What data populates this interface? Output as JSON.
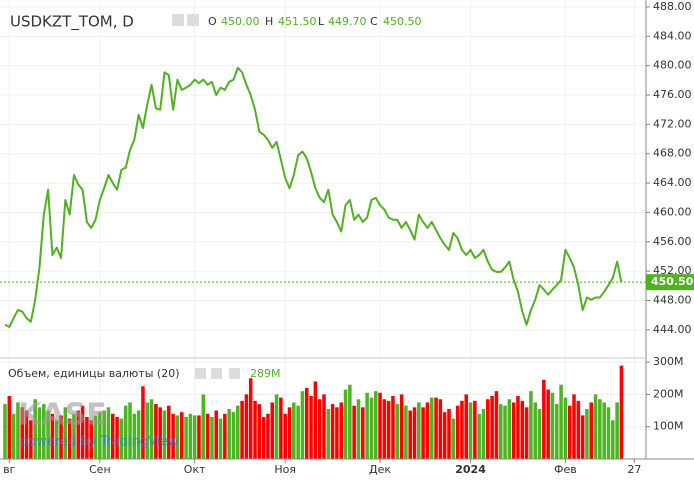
{
  "header": {
    "symbol": "USDKZT_TOM, D",
    "o_label": "O",
    "open": "450.00",
    "h_label": "H",
    "high": "451.50",
    "l_label": "L",
    "low": "449.70",
    "c_label": "C",
    "close": "450.50"
  },
  "watermark": {
    "logo": "KASE",
    "powered": "powered by TradingView"
  },
  "chart_data": [
    {
      "type": "line",
      "color": "#4fb31e",
      "grid": true,
      "last_value_line": true,
      "values": [
        444.7,
        444.4,
        445.6,
        446.7,
        446.5,
        445.6,
        445.1,
        448.1,
        452.5,
        459.7,
        463.1,
        454.2,
        455.2,
        453.8,
        461.7,
        459.7,
        465.1,
        463.8,
        463.1,
        458.7,
        457.9,
        459.0,
        461.7,
        463.3,
        465.1,
        464.0,
        463.1,
        465.8,
        466.1,
        468.5,
        469.9,
        473.3,
        471.5,
        474.7,
        477.4,
        474.2,
        474.0,
        479.1,
        478.7,
        474.0,
        478.1,
        476.7,
        477.0,
        477.4,
        478.1,
        477.6,
        478.1,
        477.4,
        477.8,
        476.0,
        477.0,
        476.7,
        477.8,
        478.1,
        479.7,
        479.1,
        477.4,
        476.0,
        474.0,
        471.0,
        470.6,
        469.9,
        468.8,
        469.6,
        467.2,
        464.7,
        463.3,
        465.1,
        467.8,
        468.3,
        467.4,
        465.5,
        463.3,
        462.0,
        461.4,
        463.1,
        459.7,
        458.7,
        457.4,
        461.0,
        461.7,
        459.0,
        459.7,
        458.7,
        459.3,
        461.7,
        462.0,
        461.0,
        460.4,
        459.3,
        459.0,
        459.0,
        457.9,
        458.7,
        457.6,
        456.3,
        459.7,
        458.7,
        457.9,
        458.7,
        457.6,
        456.5,
        455.6,
        454.9,
        457.2,
        456.5,
        454.9,
        454.2,
        454.9,
        453.8,
        454.2,
        454.9,
        453.3,
        452.2,
        451.9,
        451.9,
        452.5,
        453.3,
        450.8,
        449.2,
        446.5,
        444.7,
        446.7,
        448.1,
        450.1,
        449.5,
        448.8,
        449.5,
        450.1,
        450.8,
        454.9,
        453.8,
        452.5,
        450.1,
        446.7,
        448.4,
        448.1,
        448.4,
        448.4,
        449.2,
        450.1,
        451.1,
        453.3,
        450.5
      ],
      "xlim": [
        -1.16,
        148.7
      ],
      "xticks": [
        {
          "value": 1,
          "label": "вг"
        },
        {
          "value": 22,
          "label": "Сен"
        },
        {
          "value": 44,
          "label": "Окт"
        },
        {
          "value": 65,
          "label": "Ноя"
        },
        {
          "value": 87,
          "label": "Дек"
        },
        {
          "value": 108,
          "label": "2024"
        },
        {
          "value": 130,
          "label": "Фев"
        },
        {
          "value": 146,
          "label": "27"
        }
      ],
      "ylim": [
        440.3,
        488.95
      ],
      "yticks": [
        {
          "value": 444,
          "label": "444.00"
        },
        {
          "value": 448,
          "label": "448.00"
        },
        {
          "value": 452,
          "label": "452.00"
        },
        {
          "value": 456,
          "label": "456.00"
        },
        {
          "value": 460,
          "label": "460.00"
        },
        {
          "value": 464,
          "label": "464.00"
        },
        {
          "value": 468,
          "label": "468.00"
        },
        {
          "value": 472,
          "label": "472.00"
        },
        {
          "value": 476,
          "label": "476.00"
        },
        {
          "value": 480,
          "label": "480.00"
        },
        {
          "value": 484,
          "label": "484.00"
        },
        {
          "value": 488,
          "label": "488.00"
        }
      ]
    },
    {
      "type": "bar",
      "title": "Объем, единицы валюты (20)",
      "up_color": "#4cb521",
      "down_color": "#ff0000",
      "grid": true,
      "values": [
        170,
        195,
        140,
        175,
        160,
        150,
        120,
        185,
        160,
        170,
        150,
        140,
        120,
        135,
        160,
        125,
        140,
        150,
        165,
        130,
        120,
        135,
        145,
        150,
        160,
        140,
        130,
        125,
        165,
        175,
        140,
        150,
        225,
        175,
        185,
        170,
        160,
        150,
        165,
        140,
        135,
        145,
        130,
        140,
        135,
        135,
        200,
        140,
        130,
        150,
        125,
        140,
        155,
        145,
        165,
        180,
        200,
        250,
        180,
        170,
        130,
        140,
        175,
        200,
        190,
        140,
        160,
        175,
        165,
        210,
        220,
        195,
        240,
        185,
        200,
        155,
        170,
        160,
        175,
        215,
        230,
        165,
        185,
        160,
        205,
        190,
        210,
        205,
        185,
        180,
        195,
        170,
        200,
        165,
        150,
        160,
        175,
        160,
        175,
        190,
        190,
        185,
        145,
        155,
        125,
        165,
        180,
        200,
        175,
        180,
        140,
        155,
        185,
        195,
        210,
        170,
        165,
        185,
        175,
        195,
        180,
        160,
        210,
        175,
        155,
        245,
        215,
        205,
        170,
        230,
        190,
        165,
        200,
        180,
        135,
        155,
        175,
        200,
        185,
        175,
        160,
        120,
        175,
        289
      ],
      "last_value_label": "289M",
      "ylim": [
        0,
        312.7
      ],
      "yticks": [
        {
          "value": 100,
          "label": "100M"
        },
        {
          "value": 200,
          "label": "200M"
        },
        {
          "value": 300,
          "label": "300M"
        }
      ]
    }
  ]
}
